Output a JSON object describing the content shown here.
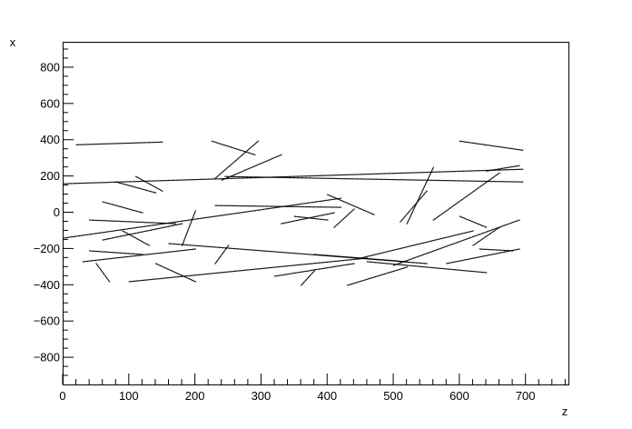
{
  "chart_data": {
    "type": "scatter",
    "title": "",
    "xlabel": "z",
    "ylabel": "x",
    "xlim": [
      0,
      765
    ],
    "ylim": [
      -950,
      940
    ],
    "grid": false,
    "legend": "none",
    "x_ticks": [
      "0",
      "100",
      "200",
      "300",
      "400",
      "500",
      "600",
      "700"
    ],
    "y_ticks": [
      "−800",
      "−600",
      "−400",
      "−200",
      "0",
      "200",
      "400",
      "600",
      "800"
    ],
    "x_tick_values": [
      0,
      100,
      200,
      300,
      400,
      500,
      600,
      700
    ],
    "y_tick_values": [
      -800,
      -600,
      -400,
      -200,
      0,
      200,
      400,
      600,
      800
    ],
    "colors": {
      "marker": "#000000",
      "frame": "#000000",
      "background": "#ffffff"
    },
    "tracks": [
      {
        "x": [
          0,
          695
        ],
        "y": [
          160,
          240
        ]
      },
      {
        "x": [
          245,
          695
        ],
        "y": [
          200,
          170
        ]
      },
      {
        "x": [
          0,
          420
        ],
        "y": [
          -140,
          80
        ]
      },
      {
        "x": [
          30,
          200
        ],
        "y": [
          -270,
          -200
        ]
      },
      {
        "x": [
          100,
          460
        ],
        "y": [
          -380,
          -250
        ]
      },
      {
        "x": [
          160,
          550
        ],
        "y": [
          -170,
          -280
        ]
      },
      {
        "x": [
          20,
          150
        ],
        "y": [
          375,
          390
        ]
      },
      {
        "x": [
          600,
          695
        ],
        "y": [
          395,
          345
        ]
      },
      {
        "x": [
          230,
          295
        ],
        "y": [
          190,
          395
        ]
      },
      {
        "x": [
          225,
          290
        ],
        "y": [
          395,
          320
        ]
      },
      {
        "x": [
          240,
          330
        ],
        "y": [
          180,
          320
        ]
      },
      {
        "x": [
          380,
          520
        ],
        "y": [
          -230,
          -270
        ]
      },
      {
        "x": [
          430,
          520
        ],
        "y": [
          -400,
          -300
        ]
      },
      {
        "x": [
          450,
          620
        ],
        "y": [
          -250,
          -100
        ]
      },
      {
        "x": [
          500,
          690
        ],
        "y": [
          -290,
          -40
        ]
      },
      {
        "x": [
          520,
          560
        ],
        "y": [
          -60,
          250
        ]
      },
      {
        "x": [
          560,
          660
        ],
        "y": [
          -40,
          220
        ]
      },
      {
        "x": [
          510,
          550
        ],
        "y": [
          -50,
          120
        ]
      },
      {
        "x": [
          400,
          470
        ],
        "y": [
          100,
          -10
        ]
      },
      {
        "x": [
          230,
          420
        ],
        "y": [
          40,
          30
        ]
      },
      {
        "x": [
          40,
          170
        ],
        "y": [
          -40,
          -60
        ]
      },
      {
        "x": [
          90,
          130
        ],
        "y": [
          -100,
          -180
        ]
      },
      {
        "x": [
          60,
          180
        ],
        "y": [
          -150,
          -60
        ]
      },
      {
        "x": [
          140,
          200
        ],
        "y": [
          -280,
          -380
        ]
      },
      {
        "x": [
          50,
          70
        ],
        "y": [
          -280,
          -380
        ]
      },
      {
        "x": [
          460,
          640
        ],
        "y": [
          -270,
          -330
        ]
      },
      {
        "x": [
          580,
          690
        ],
        "y": [
          -280,
          -200
        ]
      },
      {
        "x": [
          630,
          680
        ],
        "y": [
          -200,
          -210
        ]
      },
      {
        "x": [
          320,
          440
        ],
        "y": [
          -350,
          -280
        ]
      },
      {
        "x": [
          80,
          140
        ],
        "y": [
          170,
          110
        ]
      },
      {
        "x": [
          110,
          150
        ],
        "y": [
          200,
          120
        ]
      },
      {
        "x": [
          60,
          120
        ],
        "y": [
          60,
          0
        ]
      },
      {
        "x": [
          330,
          410
        ],
        "y": [
          -60,
          0
        ]
      },
      {
        "x": [
          350,
          400
        ],
        "y": [
          -20,
          -40
        ]
      },
      {
        "x": [
          410,
          440
        ],
        "y": [
          -80,
          20
        ]
      },
      {
        "x": [
          180,
          200
        ],
        "y": [
          -180,
          10
        ]
      },
      {
        "x": [
          230,
          250
        ],
        "y": [
          -280,
          -180
        ]
      },
      {
        "x": [
          360,
          380
        ],
        "y": [
          -400,
          -320
        ]
      },
      {
        "x": [
          620,
          660
        ],
        "y": [
          -180,
          -80
        ]
      },
      {
        "x": [
          600,
          640
        ],
        "y": [
          -20,
          -80
        ]
      },
      {
        "x": [
          640,
          690
        ],
        "y": [
          230,
          260
        ]
      },
      {
        "x": [
          40,
          120
        ],
        "y": [
          -210,
          -230
        ]
      }
    ]
  }
}
